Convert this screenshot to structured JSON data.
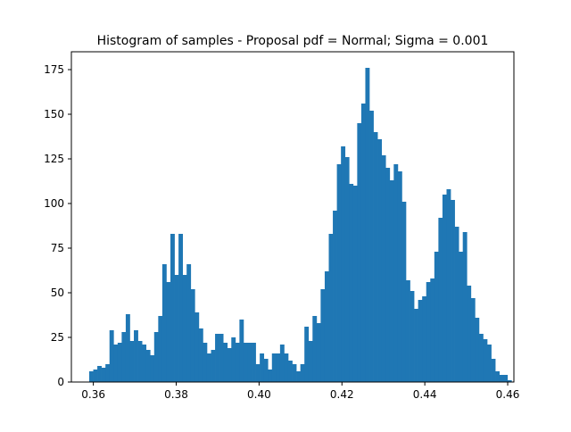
{
  "chart_data": {
    "type": "bar",
    "title": "Histogram of samples - Proposal pdf = Normal; Sigma = 0.001",
    "xlabel": "",
    "ylabel": "",
    "xlim": [
      0.3547,
      0.4615
    ],
    "ylim": [
      0,
      185
    ],
    "xticks": [
      0.36,
      0.38,
      0.4,
      0.42,
      0.44,
      0.46
    ],
    "xtick_labels": [
      "0.36",
      "0.38",
      "0.40",
      "0.42",
      "0.44",
      "0.46"
    ],
    "yticks": [
      0,
      25,
      50,
      75,
      100,
      125,
      150,
      175
    ],
    "ytick_labels": [
      "0",
      "25",
      "50",
      "75",
      "100",
      "125",
      "150",
      "175"
    ],
    "bin_start": 0.359,
    "bin_width": 0.00098,
    "bar_color": "#1f77b4",
    "values": [
      6,
      7,
      9,
      8,
      10,
      29,
      21,
      22,
      28,
      38,
      23,
      29,
      23,
      21,
      18,
      15,
      28,
      37,
      66,
      56,
      83,
      60,
      83,
      60,
      66,
      52,
      39,
      30,
      22,
      16,
      18,
      27,
      27,
      22,
      19,
      25,
      22,
      35,
      22,
      22,
      22,
      10,
      16,
      13,
      7,
      16,
      16,
      21,
      16,
      12,
      10,
      6,
      10,
      31,
      23,
      37,
      33,
      52,
      62,
      83,
      96,
      122,
      132,
      126,
      111,
      110,
      145,
      156,
      176,
      152,
      140,
      136,
      127,
      120,
      113,
      122,
      118,
      101,
      57,
      51,
      41,
      46,
      48,
      56,
      58,
      73,
      92,
      105,
      108,
      102,
      87,
      73,
      84,
      54,
      47,
      36,
      27,
      24,
      21,
      13,
      6,
      4,
      4,
      1
    ]
  }
}
